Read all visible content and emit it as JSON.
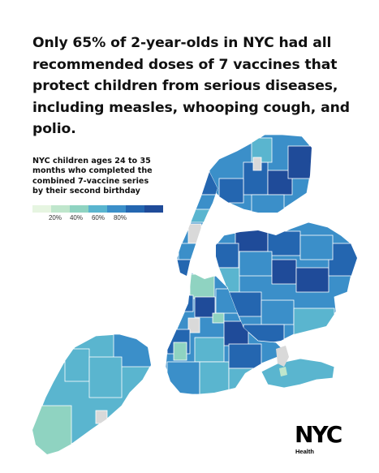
{
  "headline": "Only 65% of 2-year-olds in NYC had all recommended doses of 7 vaccines that protect children from serious diseases, including measles, whooping cough, and polio.",
  "legend": {
    "title": "NYC children ages 24 to 35 months who completed the combined 7-vaccine series by their second birthday",
    "ticks": [
      "20%",
      "40%",
      "60%",
      "80%"
    ],
    "colors": [
      "#e6f5e1",
      "#bfe6cc",
      "#8fd3c1",
      "#5ab5cf",
      "#3b8fc9",
      "#2466b0",
      "#1f4b99"
    ]
  },
  "map": {
    "colors": {
      "lowest": "#e6f5e1",
      "low": "#bfe6cc",
      "mid_low": "#8fd3c1",
      "mid": "#5ab5cf",
      "mid_high": "#3b8fc9",
      "high": "#2466b0",
      "highest": "#1f4b99",
      "no_data": "#d9d9d9"
    }
  },
  "logo": {
    "text": "NYC",
    "subtext": "Health"
  }
}
